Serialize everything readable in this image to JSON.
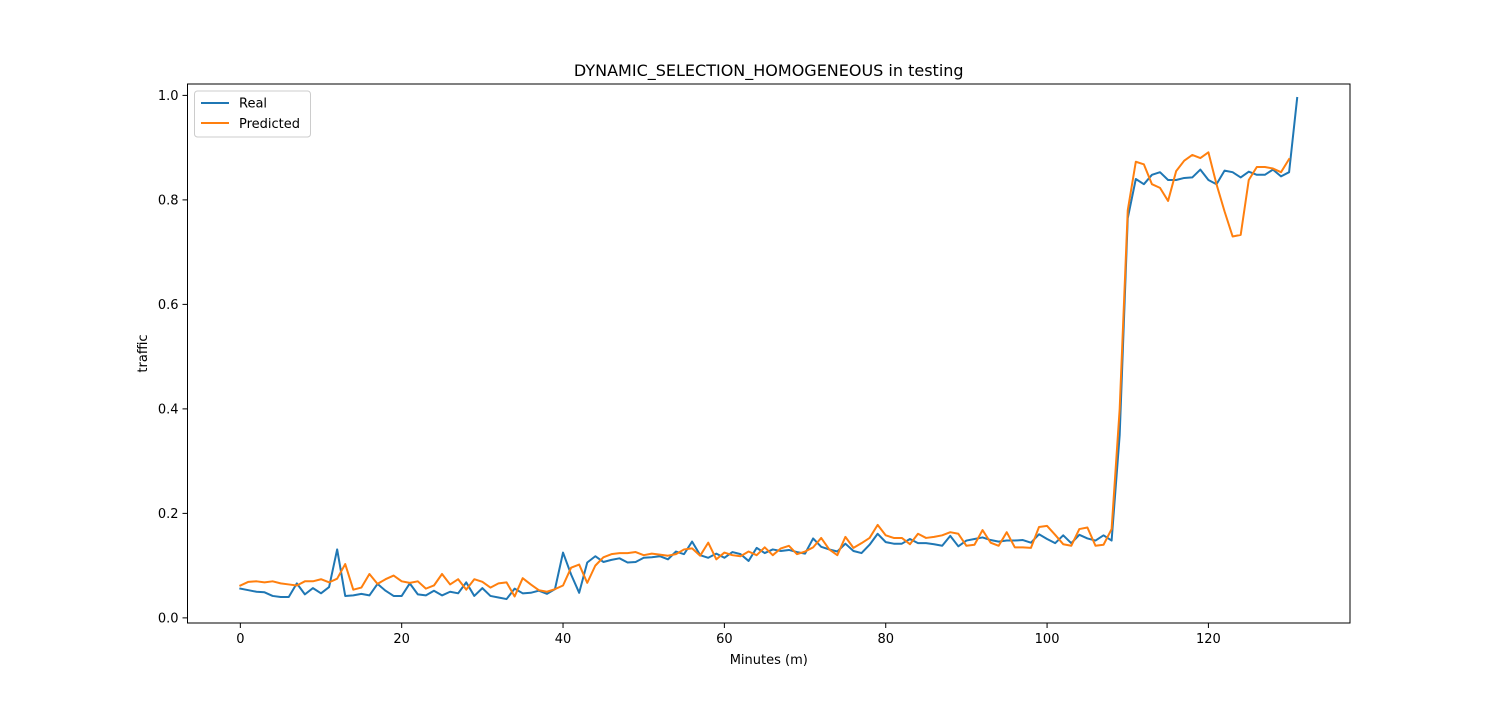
{
  "chart_data": {
    "type": "line",
    "title": "DYNAMIC_SELECTION_HOMOGENEOUS in testing",
    "xlabel": "Minutes (m)",
    "ylabel": "traffic",
    "xlim": [
      -6.55,
      137.55
    ],
    "ylim": [
      -0.0098,
      1.0218
    ],
    "xticks": [
      0,
      20,
      40,
      60,
      80,
      100,
      120
    ],
    "yticks": [
      0.0,
      0.2,
      0.4,
      0.6,
      0.8,
      1.0
    ],
    "xtick_labels": [
      "0",
      "20",
      "40",
      "60",
      "80",
      "100",
      "120"
    ],
    "ytick_labels": [
      "0.0",
      "0.2",
      "0.4",
      "0.6",
      "0.8",
      "1.0"
    ],
    "grid": false,
    "legend_position": "top-left",
    "series": [
      {
        "name": "Real",
        "color": "#1f77b4",
        "values": [
          0.056,
          0.053,
          0.05,
          0.049,
          0.042,
          0.04,
          0.04,
          0.066,
          0.045,
          0.057,
          0.047,
          0.059,
          0.131,
          0.042,
          0.043,
          0.046,
          0.043,
          0.065,
          0.052,
          0.042,
          0.042,
          0.066,
          0.045,
          0.043,
          0.052,
          0.043,
          0.05,
          0.047,
          0.068,
          0.042,
          0.057,
          0.042,
          0.039,
          0.036,
          0.056,
          0.047,
          0.048,
          0.052,
          0.046,
          0.055,
          0.125,
          0.083,
          0.048,
          0.106,
          0.118,
          0.107,
          0.111,
          0.114,
          0.106,
          0.107,
          0.115,
          0.116,
          0.118,
          0.112,
          0.127,
          0.122,
          0.146,
          0.12,
          0.115,
          0.123,
          0.115,
          0.126,
          0.122,
          0.109,
          0.134,
          0.124,
          0.131,
          0.128,
          0.13,
          0.126,
          0.123,
          0.152,
          0.136,
          0.131,
          0.127,
          0.142,
          0.128,
          0.124,
          0.14,
          0.161,
          0.145,
          0.142,
          0.142,
          0.151,
          0.143,
          0.143,
          0.141,
          0.138,
          0.157,
          0.137,
          0.148,
          0.151,
          0.154,
          0.149,
          0.146,
          0.148,
          0.148,
          0.149,
          0.144,
          0.16,
          0.151,
          0.143,
          0.158,
          0.143,
          0.159,
          0.152,
          0.148,
          0.158,
          0.148,
          0.35,
          0.765,
          0.84,
          0.83,
          0.848,
          0.853,
          0.838,
          0.838,
          0.842,
          0.843,
          0.858,
          0.838,
          0.83,
          0.856,
          0.853,
          0.843,
          0.854,
          0.848,
          0.848,
          0.858,
          0.845,
          0.853,
          0.995
        ]
      },
      {
        "name": "Predicted",
        "color": "#ff7f0e",
        "values": [
          0.062,
          0.069,
          0.07,
          0.068,
          0.07,
          0.066,
          0.064,
          0.062,
          0.07,
          0.07,
          0.074,
          0.068,
          0.075,
          0.103,
          0.054,
          0.058,
          0.084,
          0.065,
          0.074,
          0.081,
          0.07,
          0.067,
          0.07,
          0.056,
          0.062,
          0.084,
          0.064,
          0.074,
          0.054,
          0.074,
          0.069,
          0.058,
          0.066,
          0.068,
          0.041,
          0.076,
          0.064,
          0.053,
          0.05,
          0.055,
          0.062,
          0.096,
          0.102,
          0.067,
          0.1,
          0.116,
          0.122,
          0.124,
          0.124,
          0.126,
          0.12,
          0.123,
          0.121,
          0.119,
          0.122,
          0.131,
          0.133,
          0.119,
          0.144,
          0.112,
          0.125,
          0.12,
          0.118,
          0.127,
          0.12,
          0.135,
          0.12,
          0.133,
          0.138,
          0.122,
          0.127,
          0.135,
          0.153,
          0.131,
          0.12,
          0.155,
          0.134,
          0.143,
          0.153,
          0.178,
          0.158,
          0.153,
          0.153,
          0.141,
          0.161,
          0.153,
          0.155,
          0.158,
          0.164,
          0.161,
          0.138,
          0.14,
          0.168,
          0.144,
          0.138,
          0.164,
          0.135,
          0.135,
          0.134,
          0.174,
          0.176,
          0.159,
          0.141,
          0.138,
          0.17,
          0.173,
          0.138,
          0.14,
          0.17,
          0.4,
          0.78,
          0.873,
          0.868,
          0.83,
          0.823,
          0.798,
          0.855,
          0.875,
          0.886,
          0.88,
          0.891,
          0.83,
          0.778,
          0.73,
          0.733,
          0.838,
          0.863,
          0.863,
          0.86,
          0.853,
          0.878
        ]
      }
    ]
  }
}
